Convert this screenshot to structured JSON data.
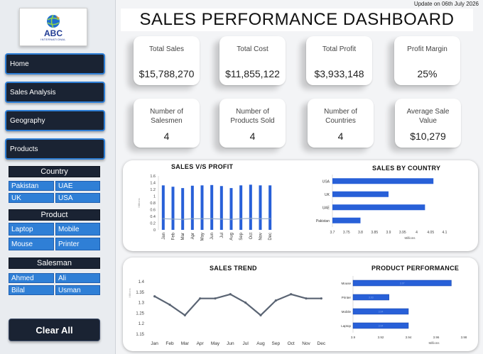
{
  "header": {
    "update": "Update on 06th July 2026",
    "title": "SALES PERFORMANCE DASHBOARD"
  },
  "logo": {
    "name": "ABC",
    "sub": "INTERNATIONAL"
  },
  "nav": [
    {
      "label": "Home"
    },
    {
      "label": "Sales Analysis"
    },
    {
      "label": "Geography"
    },
    {
      "label": "Products"
    }
  ],
  "slicers": {
    "country": {
      "title": "Country",
      "items": [
        "Pakistan",
        "UAE",
        "UK",
        "USA"
      ]
    },
    "product": {
      "title": "Product",
      "items": [
        "Laptop",
        "Mobile",
        "Mouse",
        "Printer"
      ]
    },
    "salesman": {
      "title": "Salesman",
      "items": [
        "Ahmed",
        "Ali",
        "Bilal",
        "Usman"
      ]
    }
  },
  "clear_label": "Clear All",
  "kpis": [
    {
      "label": "Total Sales",
      "value": "$15,788,270"
    },
    {
      "label": "Total Cost",
      "value": "$11,855,122"
    },
    {
      "label": "Total Profit",
      "value": "$3,933,148"
    },
    {
      "label": "Profit Margin",
      "value": "25%"
    },
    {
      "label": "Number of Salesmen",
      "value": "4"
    },
    {
      "label": "Number of Products Sold",
      "value": "4"
    },
    {
      "label": "Number of Countries",
      "value": "4"
    },
    {
      "label": "Average Sale Value",
      "value": "$10,279"
    }
  ],
  "colors": {
    "bar": "#2860d8",
    "line": "#5a6473",
    "accent": "#2f7fd6",
    "dark": "#1a2333"
  },
  "chart_data": [
    {
      "type": "bar",
      "title": "SALES V/S PROFIT",
      "ylabel": "Millions",
      "categories": [
        "Jan",
        "Feb",
        "Mar",
        "Apr",
        "May",
        "Jun",
        "Jul",
        "Aug",
        "Sep",
        "Oct",
        "Nov",
        "Dec"
      ],
      "series": [
        {
          "values": [
            1.32,
            1.28,
            1.24,
            1.31,
            1.32,
            1.33,
            1.3,
            1.24,
            1.32,
            1.34,
            1.32,
            1.32
          ]
        },
        {
          "values": [
            0.33,
            0.32,
            0.31,
            0.33,
            0.33,
            0.33,
            0.32,
            0.31,
            0.33,
            0.34,
            0.33,
            0.33
          ]
        }
      ],
      "yticks": [
        "0",
        "0.2",
        "0.4",
        "0.6",
        "0.8",
        "1",
        "1.2",
        "1.4",
        "1.6"
      ],
      "ylim": [
        0,
        1.6
      ]
    },
    {
      "type": "bar",
      "orientation": "horizontal",
      "title": "SALES BY COUNTRY",
      "xlabel": "Millions",
      "categories": [
        "USA",
        "UK",
        "UAE",
        "Pakistan"
      ],
      "values": [
        4.06,
        3.9,
        4.03,
        3.8
      ],
      "xticks": [
        "3.7",
        "3.75",
        "3.8",
        "3.85",
        "3.9",
        "3.95",
        "4",
        "4.05",
        "4.1"
      ],
      "xlim": [
        3.7,
        4.1
      ]
    },
    {
      "type": "line",
      "title": "SALES TREND",
      "ylabel": "Millions",
      "categories": [
        "Jan",
        "Feb",
        "Mar",
        "Apr",
        "May",
        "Jun",
        "Jul",
        "Aug",
        "Sep",
        "Oct",
        "Nov",
        "Dec"
      ],
      "values": [
        1.33,
        1.29,
        1.24,
        1.32,
        1.32,
        1.34,
        1.3,
        1.24,
        1.31,
        1.34,
        1.32,
        1.32
      ],
      "yticks": [
        "1.15",
        "1.2",
        "1.25",
        "1.3",
        "1.35",
        "1.4"
      ],
      "ylim": [
        1.15,
        1.4
      ]
    },
    {
      "type": "bar",
      "orientation": "horizontal",
      "title": "PRODUCT PERFORMANCE",
      "xlabel": "Millions",
      "categories": [
        "Mouse",
        "Printer",
        "Mobile",
        "Laptop"
      ],
      "values": [
        3.971,
        3.926,
        3.94,
        3.94
      ],
      "data_labels": [
        "3.97",
        "3.93",
        "3.94",
        "3.94"
      ],
      "xticks": [
        "3.9",
        "3.92",
        "3.94",
        "3.96",
        "3.98"
      ],
      "xlim": [
        3.9,
        3.98
      ]
    }
  ]
}
